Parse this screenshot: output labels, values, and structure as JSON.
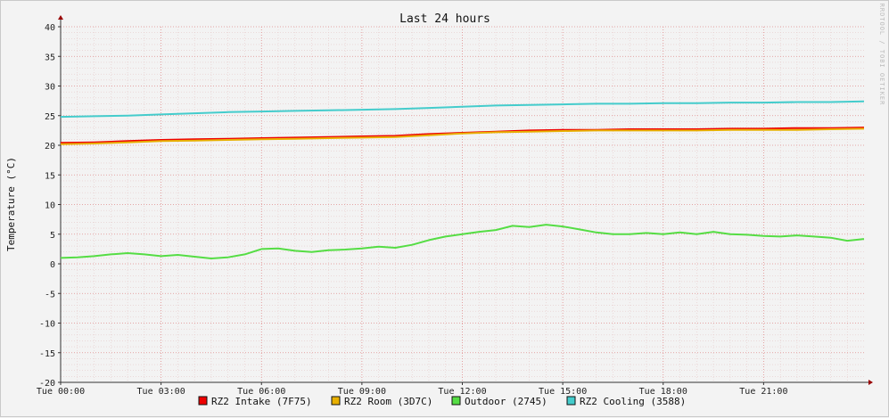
{
  "chart_data": {
    "type": "line",
    "title": "Last 24 hours",
    "ylabel": "Temperature (°C)",
    "xlabel": "",
    "watermark": "RRDTOOL / TOBI OETIKER",
    "ylim": [
      -20,
      40
    ],
    "yticks": [
      40,
      35,
      30,
      25,
      20,
      15,
      10,
      5,
      0,
      -5,
      -10,
      -15,
      -20
    ],
    "xlim": [
      0,
      24
    ],
    "xticks": [
      {
        "x": 0,
        "label": "Tue 00:00"
      },
      {
        "x": 3,
        "label": "Tue 03:00"
      },
      {
        "x": 6,
        "label": "Tue 06:00"
      },
      {
        "x": 9,
        "label": "Tue 09:00"
      },
      {
        "x": 12,
        "label": "Tue 12:00"
      },
      {
        "x": 15,
        "label": "Tue 15:00"
      },
      {
        "x": 18,
        "label": "Tue 18:00"
      },
      {
        "x": 21,
        "label": "Tue 21:00"
      }
    ],
    "grid": true,
    "legend": "bottom",
    "series": [
      {
        "name": "RZ2 Intake (7F75)",
        "color": "#ee0000",
        "x": [
          0,
          1,
          2,
          3,
          4,
          5,
          6,
          7,
          8,
          9,
          10,
          11,
          12,
          13,
          14,
          15,
          16,
          17,
          18,
          19,
          20,
          21,
          22,
          23,
          24
        ],
        "values": [
          20.4,
          20.5,
          20.7,
          20.9,
          21.0,
          21.1,
          21.2,
          21.3,
          21.4,
          21.5,
          21.6,
          21.9,
          22.1,
          22.3,
          22.5,
          22.6,
          22.6,
          22.7,
          22.7,
          22.7,
          22.8,
          22.8,
          22.9,
          22.9,
          23.0
        ]
      },
      {
        "name": "RZ2 Room (3D7C)",
        "color": "#e8b000",
        "x": [
          0,
          1,
          2,
          3,
          4,
          5,
          6,
          7,
          8,
          9,
          10,
          11,
          12,
          13,
          14,
          15,
          16,
          17,
          18,
          19,
          20,
          21,
          22,
          23,
          24
        ],
        "values": [
          20.2,
          20.3,
          20.5,
          20.7,
          20.8,
          20.9,
          21.0,
          21.1,
          21.2,
          21.3,
          21.4,
          21.7,
          22.0,
          22.2,
          22.3,
          22.4,
          22.5,
          22.5,
          22.5,
          22.5,
          22.6,
          22.6,
          22.6,
          22.7,
          22.8
        ]
      },
      {
        "name": "Outdoor (2745)",
        "color": "#55dd44",
        "x": [
          0,
          0.5,
          1,
          1.5,
          2,
          2.5,
          3,
          3.5,
          4,
          4.5,
          5,
          5.5,
          6,
          6.5,
          7,
          7.5,
          8,
          8.5,
          9,
          9.5,
          10,
          10.5,
          11,
          11.5,
          12,
          12.5,
          13,
          13.5,
          14,
          14.5,
          15,
          15.5,
          16,
          16.5,
          17,
          17.5,
          18,
          18.5,
          19,
          19.5,
          20,
          20.5,
          21,
          21.5,
          22,
          22.5,
          23,
          23.5,
          24
        ],
        "values": [
          1.0,
          1.1,
          1.3,
          1.6,
          1.8,
          1.6,
          1.3,
          1.5,
          1.2,
          0.9,
          1.1,
          1.6,
          2.5,
          2.6,
          2.2,
          2.0,
          2.3,
          2.4,
          2.6,
          2.9,
          2.7,
          3.2,
          4.0,
          4.6,
          5.0,
          5.4,
          5.7,
          6.4,
          6.2,
          6.6,
          6.3,
          5.8,
          5.3,
          5.0,
          5.0,
          5.2,
          5.0,
          5.3,
          5.0,
          5.4,
          5.0,
          4.9,
          4.7,
          4.6,
          4.8,
          4.6,
          4.4,
          3.9,
          4.2
        ]
      },
      {
        "name": "RZ2 Cooling (3588)",
        "color": "#44cccc",
        "x": [
          0,
          1,
          2,
          3,
          4,
          5,
          6,
          7,
          8,
          9,
          10,
          11,
          12,
          13,
          14,
          15,
          16,
          17,
          18,
          19,
          20,
          21,
          22,
          23,
          24
        ],
        "values": [
          24.8,
          24.9,
          25.0,
          25.2,
          25.4,
          25.6,
          25.7,
          25.8,
          25.9,
          26.0,
          26.1,
          26.3,
          26.5,
          26.7,
          26.8,
          26.9,
          27.0,
          27.0,
          27.1,
          27.1,
          27.2,
          27.2,
          27.3,
          27.3,
          27.4
        ]
      }
    ]
  }
}
